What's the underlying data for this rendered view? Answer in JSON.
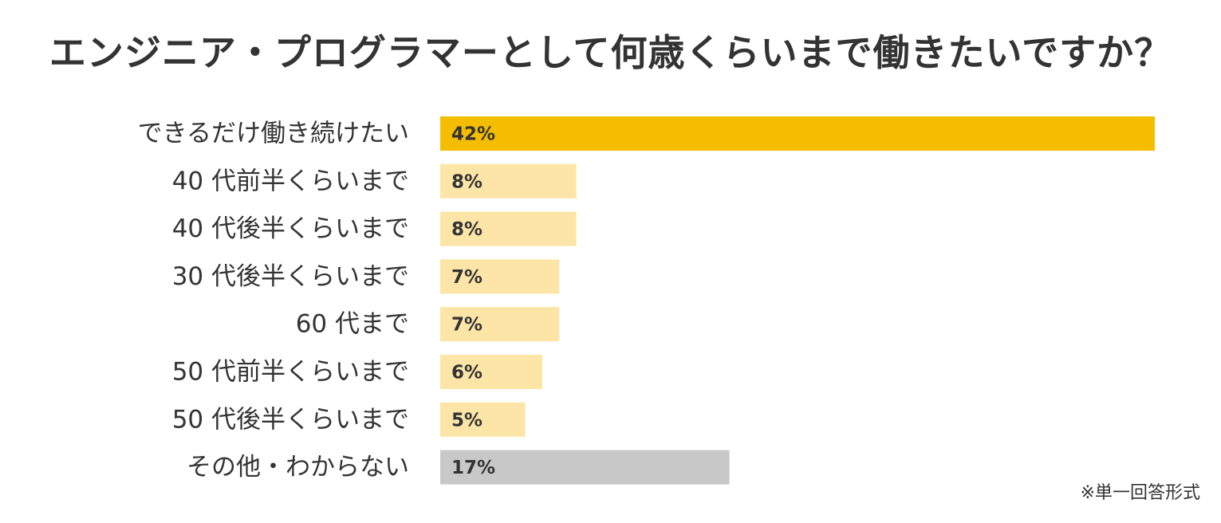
{
  "chart_data": {
    "type": "bar",
    "orientation": "horizontal",
    "title": "エンジニア・プログラマーとして何歳くらいまで働きたいですか？",
    "categories": [
      "できるだけ働き続けたい",
      "40 代前半くらいまで",
      "40 代後半くらいまで",
      "30 代後半くらいまで",
      "60 代まで",
      "50 代前半くらいまで",
      "50 代後半くらいまで",
      "その他・わからない"
    ],
    "values": [
      42,
      8,
      8,
      7,
      7,
      6,
      5,
      17
    ],
    "value_labels": [
      "42%",
      "8%",
      "8%",
      "7%",
      "7%",
      "6%",
      "5%",
      "17%"
    ],
    "unit": "%",
    "xlim": [
      0,
      42
    ],
    "colors": [
      "#F5BD00",
      "#FCE5A6",
      "#FCE5A6",
      "#FCE5A6",
      "#FCE5A6",
      "#FCE5A6",
      "#FCE5A6",
      "#C8C8C8"
    ],
    "grid": false,
    "legend": "none"
  },
  "footnote": "※単一回答形式"
}
